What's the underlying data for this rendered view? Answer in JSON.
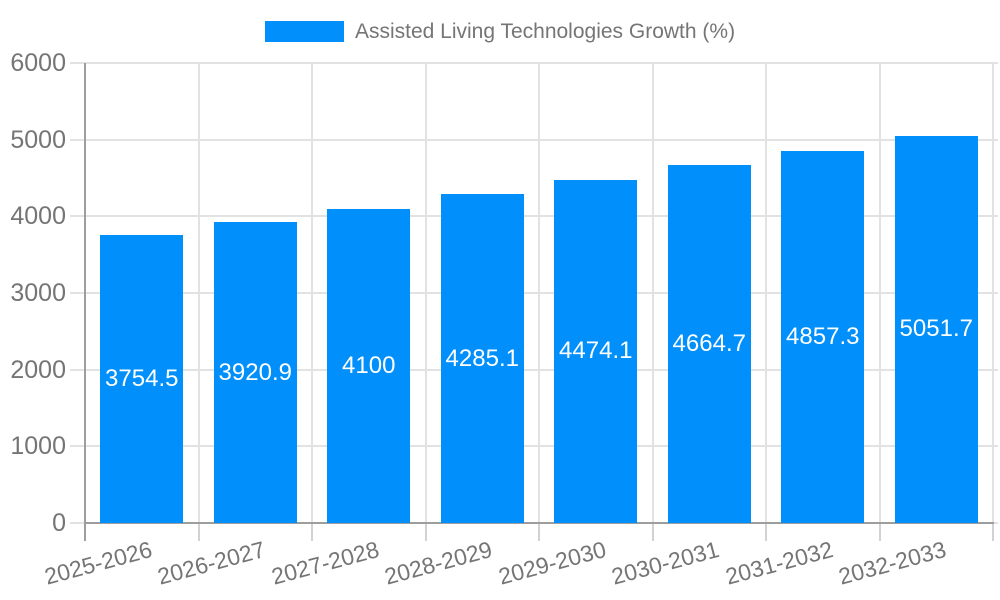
{
  "chart_data": {
    "type": "bar",
    "title": "Assisted Living Technologies Growth (%)",
    "categories": [
      "2025-2026",
      "2026-2027",
      "2027-2028",
      "2028-2029",
      "2029-2030",
      "2030-2031",
      "2031-2032",
      "2032-2033"
    ],
    "values": [
      3754.5,
      3920.9,
      4100,
      4285.1,
      4474.1,
      4664.7,
      4857.3,
      5051.7
    ],
    "value_labels": [
      "3754.5",
      "3920.9",
      "4100",
      "4285.1",
      "4474.1",
      "4664.7",
      "4857.3",
      "5051.7"
    ],
    "series": [
      {
        "name": "Assisted Living Technologies Growth (%)",
        "values": [
          3754.5,
          3920.9,
          4100,
          4285.1,
          4474.1,
          4664.7,
          4857.3,
          5051.7
        ]
      }
    ],
    "xlabel": "",
    "ylabel": "",
    "ylim": [
      0,
      6000
    ],
    "y_ticks": [
      "0",
      "1000",
      "2000",
      "3000",
      "4000",
      "5000",
      "6000"
    ],
    "grid": true,
    "legend_position": "top",
    "x_label_rotation_deg": -15,
    "colors": {
      "bar": "#008FFB",
      "grid": "#E2E2E2",
      "axis": "#9E9E9E",
      "tick": "#D2D2D2",
      "text": "#757575",
      "value_text": "#FFFFFF",
      "background": "#FFFFFF"
    }
  }
}
